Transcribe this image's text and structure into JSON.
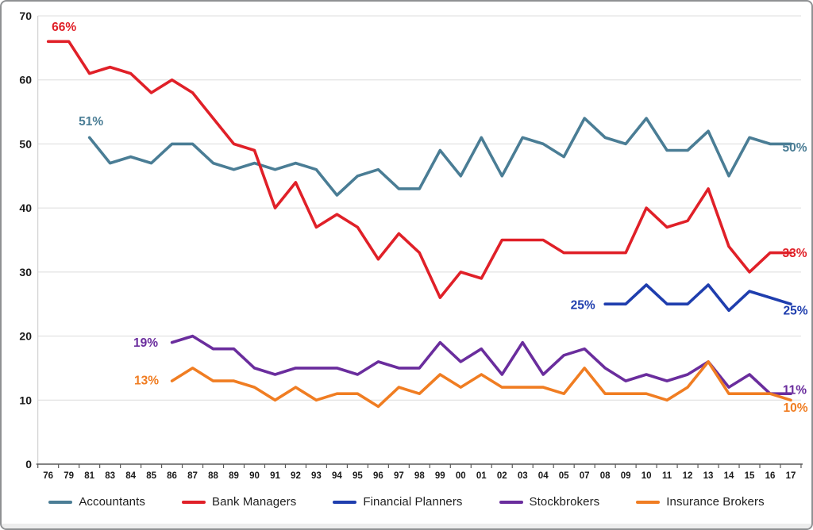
{
  "chart_data": {
    "type": "line",
    "title": "",
    "xlabel": "",
    "ylabel": "",
    "ylim": [
      0,
      70
    ],
    "yticks": [
      0,
      10,
      20,
      30,
      40,
      50,
      60,
      70
    ],
    "grid": "horizontal",
    "legend_position": "bottom",
    "categories": [
      "76",
      "79",
      "81",
      "83",
      "84",
      "85",
      "86",
      "87",
      "88",
      "89",
      "90",
      "91",
      "92",
      "93",
      "94",
      "95",
      "96",
      "97",
      "98",
      "99",
      "00",
      "01",
      "02",
      "03",
      "04",
      "05",
      "07",
      "08",
      "09",
      "10",
      "11",
      "12",
      "13",
      "14",
      "15",
      "16",
      "17"
    ],
    "series": [
      {
        "name": "Accountants",
        "color": "#4a7d95",
        "start_index": 2,
        "values": [
          51,
          47,
          48,
          47,
          50,
          50,
          47,
          46,
          47,
          46,
          47,
          46,
          42,
          45,
          46,
          43,
          43,
          49,
          45,
          51,
          45,
          51,
          50,
          48,
          54,
          51,
          50,
          54,
          49,
          49,
          52,
          45,
          51,
          50,
          50
        ]
      },
      {
        "name": "Bank Managers",
        "color": "#e02028",
        "start_index": 0,
        "values": [
          66,
          66,
          61,
          62,
          61,
          58,
          60,
          58,
          54,
          50,
          49,
          40,
          44,
          37,
          39,
          37,
          32,
          36,
          33,
          26,
          30,
          29,
          35,
          35,
          35,
          33,
          33,
          33,
          33,
          40,
          37,
          38,
          43,
          34,
          30,
          33,
          33
        ]
      },
      {
        "name": "Financial Planners",
        "color": "#1f3eae",
        "start_index": 27,
        "values": [
          25,
          25,
          28,
          25,
          25,
          28,
          24,
          27,
          26,
          25
        ]
      },
      {
        "name": "Stockbrokers",
        "color": "#6a2d9d",
        "start_index": 6,
        "values": [
          19,
          20,
          18,
          18,
          15,
          14,
          15,
          15,
          15,
          14,
          16,
          15,
          15,
          19,
          16,
          18,
          14,
          19,
          14,
          17,
          18,
          15,
          13,
          14,
          13,
          14,
          16,
          12,
          14,
          11,
          11
        ]
      },
      {
        "name": "Insurance Brokers",
        "color": "#f07d22",
        "start_index": 6,
        "values": [
          13,
          15,
          13,
          13,
          12,
          10,
          12,
          10,
          11,
          11,
          9,
          12,
          11,
          14,
          12,
          14,
          12,
          12,
          12,
          11,
          15,
          11,
          11,
          11,
          10,
          12,
          16,
          11,
          11,
          11,
          10
        ]
      }
    ],
    "annotations": [
      {
        "id": "bank-managers-start",
        "text": "66%",
        "series": "Bank Managers",
        "at": "start"
      },
      {
        "id": "accountants-start",
        "text": "51%",
        "series": "Accountants",
        "at": "start"
      },
      {
        "id": "stockbrokers-start",
        "text": "19%",
        "series": "Stockbrokers",
        "at": "start"
      },
      {
        "id": "insurance-brokers-start",
        "text": "13%",
        "series": "Insurance Brokers",
        "at": "start"
      },
      {
        "id": "financial-planners-start",
        "text": "25%",
        "series": "Financial Planners",
        "at": "start"
      },
      {
        "id": "accountants-end",
        "text": "50%",
        "series": "Accountants",
        "at": "end"
      },
      {
        "id": "bank-managers-end",
        "text": "33%",
        "series": "Bank Managers",
        "at": "end"
      },
      {
        "id": "financial-planners-end",
        "text": "25%",
        "series": "Financial Planners",
        "at": "end"
      },
      {
        "id": "stockbrokers-end",
        "text": "11%",
        "series": "Stockbrokers",
        "at": "end"
      },
      {
        "id": "insurance-brokers-end",
        "text": "10%",
        "series": "Insurance Brokers",
        "at": "end"
      }
    ],
    "axis_color": "#1a1a1a",
    "gridline_color": "#dcdcdc",
    "baseline_color": "#5a5a5a"
  }
}
